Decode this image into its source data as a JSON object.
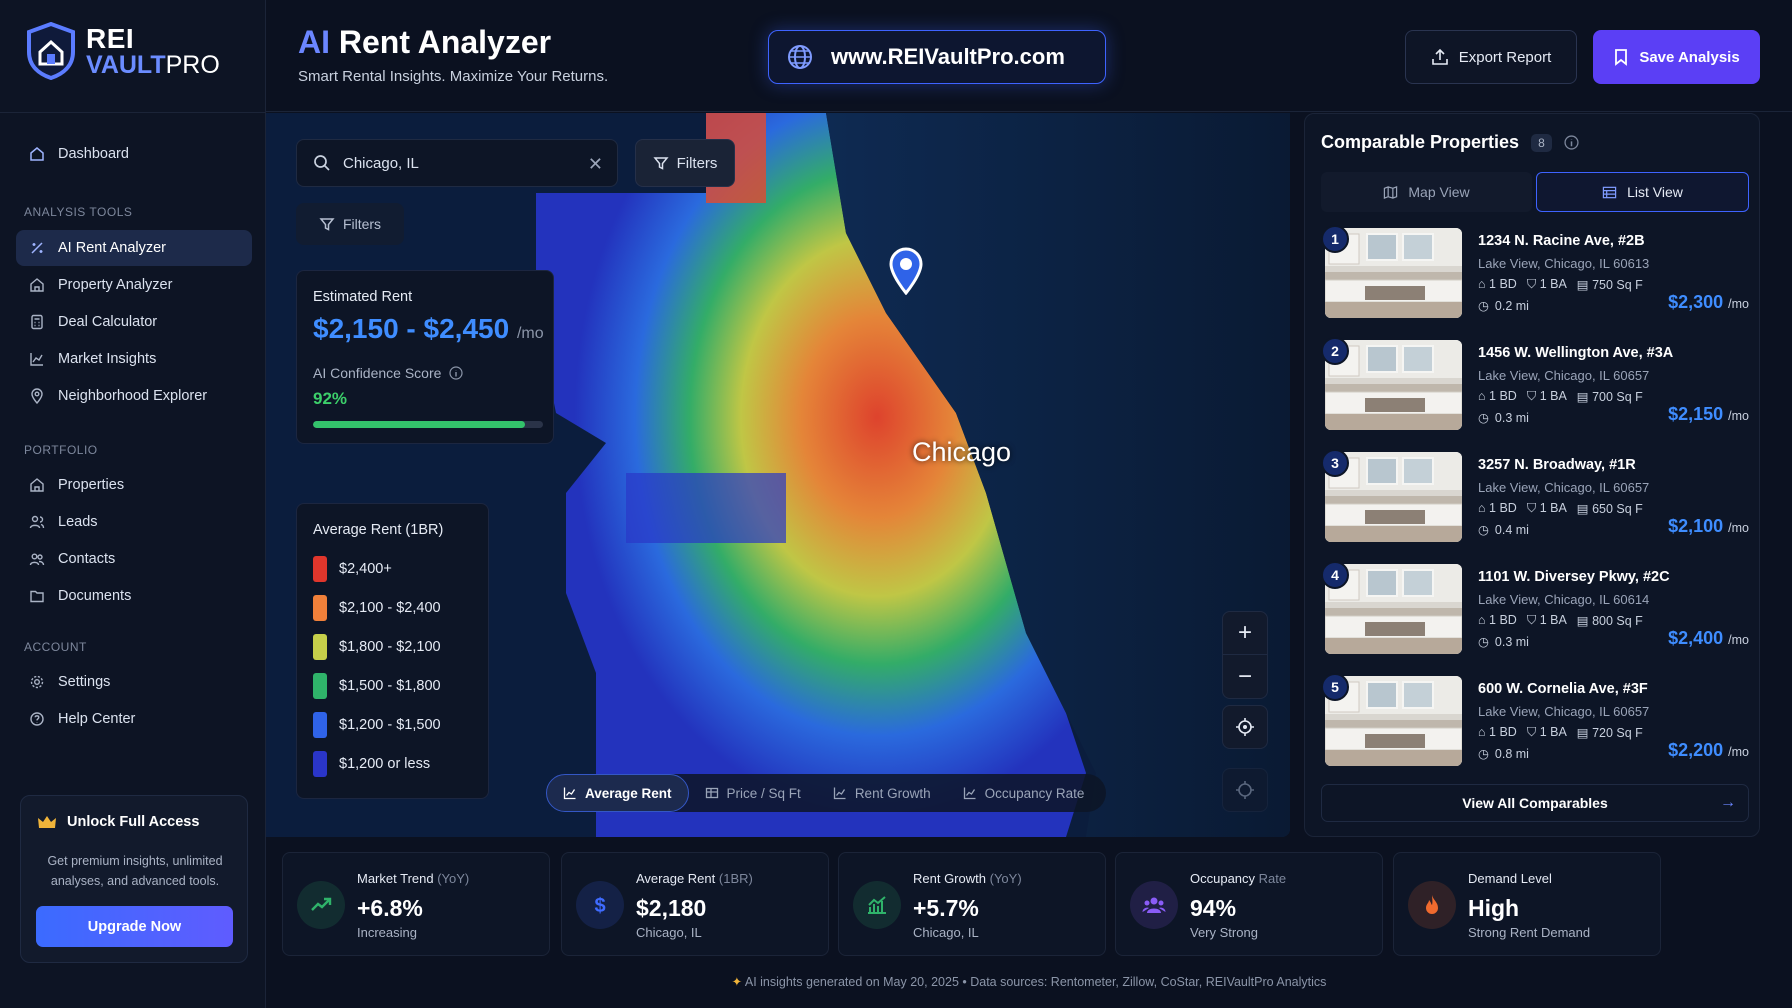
{
  "brand": {
    "rei": "REI",
    "vault": "VAULT",
    "pro": "PRO"
  },
  "header": {
    "title_ai": "AI",
    "title_rest": " Rent Analyzer",
    "subtitle": "Smart Rental Insights. Maximize Your Returns.",
    "url": "www.REIVaultPro.com",
    "export_label": "Export Report",
    "save_label": "Save Analysis"
  },
  "sidebar": {
    "dashboard": "Dashboard",
    "sections": {
      "analysis": "ANALYSIS TOOLS",
      "portfolio": "PORTFOLIO",
      "account": "ACCOUNT"
    },
    "analysis_items": [
      {
        "label": "AI Rent Analyzer",
        "icon": "sparkles-icon",
        "active": true
      },
      {
        "label": "Property Analyzer",
        "icon": "house-icon"
      },
      {
        "label": "Deal Calculator",
        "icon": "calculator-icon"
      },
      {
        "label": "Market Insights",
        "icon": "chart-icon"
      },
      {
        "label": "Neighborhood Explorer",
        "icon": "map-pin-icon"
      }
    ],
    "portfolio_items": [
      {
        "label": "Properties",
        "icon": "house-icon"
      },
      {
        "label": "Leads",
        "icon": "users-icon"
      },
      {
        "label": "Contacts",
        "icon": "contacts-icon"
      },
      {
        "label": "Documents",
        "icon": "folder-icon"
      }
    ],
    "account_items": [
      {
        "label": "Settings",
        "icon": "gear-icon"
      },
      {
        "label": "Help Center",
        "icon": "help-icon"
      }
    ],
    "unlock": {
      "title": "Unlock Full Access",
      "desc": "Get premium insights, unlimited analyses, and advanced tools.",
      "button": "Upgrade Now"
    }
  },
  "map": {
    "search_value": "Chicago, IL",
    "filters_label": "Filters",
    "filters_label_2": "Filters",
    "city_label": "Chicago",
    "estimate": {
      "label": "Estimated Rent",
      "value": "$2,150 - $2,450",
      "unit": "/mo",
      "confidence_label": "AI Confidence Score",
      "confidence_value": "92%",
      "confidence_fraction": 0.92
    },
    "legend": {
      "title": "Average Rent (1BR)",
      "items": [
        {
          "label": "$2,400+",
          "color": "#e0362c"
        },
        {
          "label": "$2,100 - $2,400",
          "color": "#f0803a"
        },
        {
          "label": "$1,800 - $2,100",
          "color": "#c6cf4a"
        },
        {
          "label": "$1,500 - $1,800",
          "color": "#2fb36a"
        },
        {
          "label": "$1,200 - $1,500",
          "color": "#2f63e8"
        },
        {
          "label": "$1,200 or less",
          "color": "#2a35c9"
        }
      ]
    },
    "tabs": [
      {
        "label": "Average Rent",
        "active": true
      },
      {
        "label": "Price / Sq Ft"
      },
      {
        "label": "Rent Growth"
      },
      {
        "label": "Occupancy Rate"
      }
    ]
  },
  "comparables": {
    "title": "Comparable Properties",
    "count": "8",
    "map_view": "Map View",
    "list_view": "List View",
    "items": [
      {
        "num": "1",
        "address": "1234 N. Racine Ave, #2B",
        "location": "Lake View, Chicago, IL 60613",
        "bd": "1 BD",
        "ba": "1 BA",
        "sqft": "750 Sq F",
        "dist": "0.2 mi",
        "price": "$2,300",
        "unit": "/mo"
      },
      {
        "num": "2",
        "address": "1456 W. Wellington Ave, #3A",
        "location": "Lake View, Chicago, IL 60657",
        "bd": "1 BD",
        "ba": "1 BA",
        "sqft": "700 Sq F",
        "dist": "0.3 mi",
        "price": "$2,150",
        "unit": "/mo"
      },
      {
        "num": "3",
        "address": "3257 N. Broadway, #1R",
        "location": "Lake View, Chicago, IL 60657",
        "bd": "1 BD",
        "ba": "1 BA",
        "sqft": "650 Sq F",
        "dist": "0.4 mi",
        "price": "$2,100",
        "unit": "/mo"
      },
      {
        "num": "4",
        "address": "1101 W. Diversey Pkwy, #2C",
        "location": "Lake View, Chicago, IL 60614",
        "bd": "1 BD",
        "ba": "1 BA",
        "sqft": "800 Sq F",
        "dist": "0.3 mi",
        "price": "$2,400",
        "unit": "/mo"
      },
      {
        "num": "5",
        "address": "600 W. Cornelia Ave, #3F",
        "location": "Lake View, Chicago, IL 60657",
        "bd": "1 BD",
        "ba": "1 BA",
        "sqft": "720 Sq F",
        "dist": "0.8 mi",
        "price": "$2,200",
        "unit": "/mo"
      }
    ],
    "view_all": "View All Comparables"
  },
  "stats": [
    {
      "label": "Market Trend",
      "label_muted": "(YoY)",
      "value": "+6.8%",
      "sub": "Increasing",
      "icon": "trend-up-icon",
      "color": "#2fb36a"
    },
    {
      "label": "Average Rent",
      "label_muted": "(1BR)",
      "value": "$2,180",
      "sub": "Chicago, IL",
      "icon": "dollar-icon",
      "color": "#3f6bff"
    },
    {
      "label": "Rent Growth",
      "label_muted": "(YoY)",
      "value": "+5.7%",
      "sub": "Chicago, IL",
      "icon": "bar-chart-icon",
      "color": "#2fb36a"
    },
    {
      "label": "Occupancy",
      "label_muted": "Rate",
      "value": "94%",
      "sub": "Very Strong",
      "icon": "people-icon",
      "color": "#8a5cf6"
    },
    {
      "label": "Demand Level",
      "label_muted": "",
      "value": "High",
      "sub": "Strong Rent Demand",
      "icon": "flame-icon",
      "color": "#f06a2e"
    }
  ],
  "footer": "AI insights generated on May 20, 2025  •  Data sources: Rentometer, Zillow, CoStar, REIVaultPro Analytics"
}
